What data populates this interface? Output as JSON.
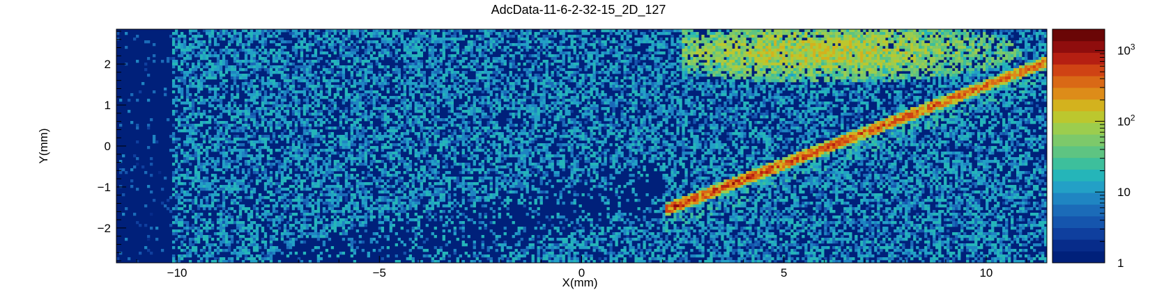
{
  "chart_data": {
    "type": "heatmap",
    "title": "AdcData-11-6-2-32-15_2D_127",
    "xlabel": "X(mm)",
    "ylabel": "Y(mm)",
    "xlim": [
      -11.5,
      11.5
    ],
    "ylim": [
      -2.85,
      2.85
    ],
    "x_ticks": [
      -10,
      -5,
      0,
      5,
      10
    ],
    "x_tick_labels": [
      "−10",
      "−5",
      "0",
      "5",
      "10"
    ],
    "y_ticks": [
      -2,
      -1,
      0,
      1,
      2
    ],
    "y_tick_labels": [
      "−2",
      "−1",
      "0",
      "1",
      "2"
    ],
    "z_scale": "log",
    "z_range": [
      1,
      2000
    ],
    "z_ticks": [
      1,
      10,
      100,
      1000
    ],
    "z_tick_labels": [
      "1",
      "10",
      "10^2",
      "10^3"
    ],
    "palette": [
      "#00207a",
      "#072c8a",
      "#0f3f9e",
      "#1555ad",
      "#1b6bb8",
      "#1f85c2",
      "#23a0c6",
      "#25b5b9",
      "#3dbf9c",
      "#5ec482",
      "#7dc96a",
      "#9ccd4e",
      "#bcc72e",
      "#d3b21e",
      "#dd8c19",
      "#d96916",
      "#cf4314",
      "#b51f12",
      "#8f0d0d",
      "#6a0606"
    ],
    "features": {
      "background_counts": 10,
      "track_start": [
        2.1,
        -1.55
      ],
      "track_end": [
        11.5,
        2.05
      ],
      "track_peak_counts": 600,
      "upper_band_center": [
        6.0,
        2.3
      ],
      "upper_band_counts": 90,
      "low_density_region_x": [
        -11.5,
        -10.1
      ],
      "low_density_diagonal": [
        [
          -5.0,
          -2.6
        ],
        [
          0.8,
          -1.3
        ]
      ]
    }
  }
}
